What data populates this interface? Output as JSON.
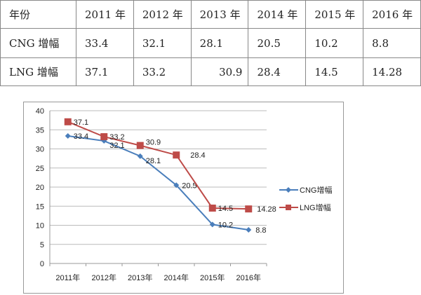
{
  "table": {
    "header": [
      "年份",
      "2011 年",
      "2012 年",
      "2013 年",
      "2014 年",
      "2015 年",
      "2016 年"
    ],
    "rows": [
      [
        "CNG 增幅",
        "33.4",
        "32.1",
        "28.1",
        "20.5",
        "10.2",
        "8.8"
      ],
      [
        "LNG 增幅",
        "37.1",
        "33.2",
        "30.9",
        "28.4",
        "14.5",
        "14.28"
      ]
    ]
  },
  "chart_data": {
    "type": "line",
    "categories": [
      "2011年",
      "2012年",
      "2013年",
      "2014年",
      "2015年",
      "2016年"
    ],
    "series": [
      {
        "name": "CNG增幅",
        "values": [
          33.4,
          32.1,
          28.1,
          20.5,
          10.2,
          8.8
        ],
        "labels": [
          "33.4",
          "32.1",
          "28.1",
          "20.5",
          "10.2",
          "8.8"
        ],
        "color": "#4a7ebb",
        "marker": "diamond"
      },
      {
        "name": "LNG增幅",
        "values": [
          37.1,
          33.2,
          30.9,
          28.4,
          14.5,
          14.28
        ],
        "labels": [
          "37.1",
          "33.2",
          "30.9",
          "28.4",
          "14.5",
          "14.28"
        ],
        "color": "#be4b48",
        "marker": "square"
      }
    ],
    "ylim": [
      0,
      40
    ],
    "yticks": [
      "0",
      "5",
      "10",
      "15",
      "20",
      "25",
      "30",
      "35",
      "40"
    ],
    "grid": true,
    "legend": "right"
  }
}
